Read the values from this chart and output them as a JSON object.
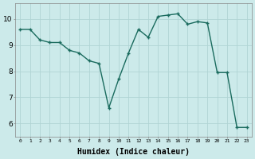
{
  "x": [
    0,
    1,
    2,
    3,
    4,
    5,
    6,
    7,
    8,
    9,
    10,
    11,
    12,
    13,
    14,
    15,
    16,
    17,
    18,
    19,
    20,
    21,
    22,
    23
  ],
  "y": [
    9.6,
    9.6,
    9.2,
    9.1,
    9.1,
    8.8,
    8.7,
    8.4,
    8.3,
    6.6,
    7.7,
    8.7,
    9.6,
    9.3,
    10.1,
    10.15,
    10.2,
    9.8,
    9.9,
    9.85,
    7.95,
    7.95,
    5.85,
    5.85
  ],
  "line_color": "#1a6b5e",
  "marker": "+",
  "markersize": 3.5,
  "linewidth": 1.0,
  "bg_color": "#cceaea",
  "grid_color": "#b0d4d4",
  "xlabel": "Humidex (Indice chaleur)",
  "xlabel_fontsize": 7,
  "xlabel_bold": true,
  "ytick_labels": [
    "6",
    "7",
    "8",
    "9",
    "10"
  ],
  "ytick_values": [
    6,
    7,
    8,
    9,
    10
  ],
  "xlim": [
    -0.5,
    23.5
  ],
  "ylim": [
    5.5,
    10.6
  ]
}
